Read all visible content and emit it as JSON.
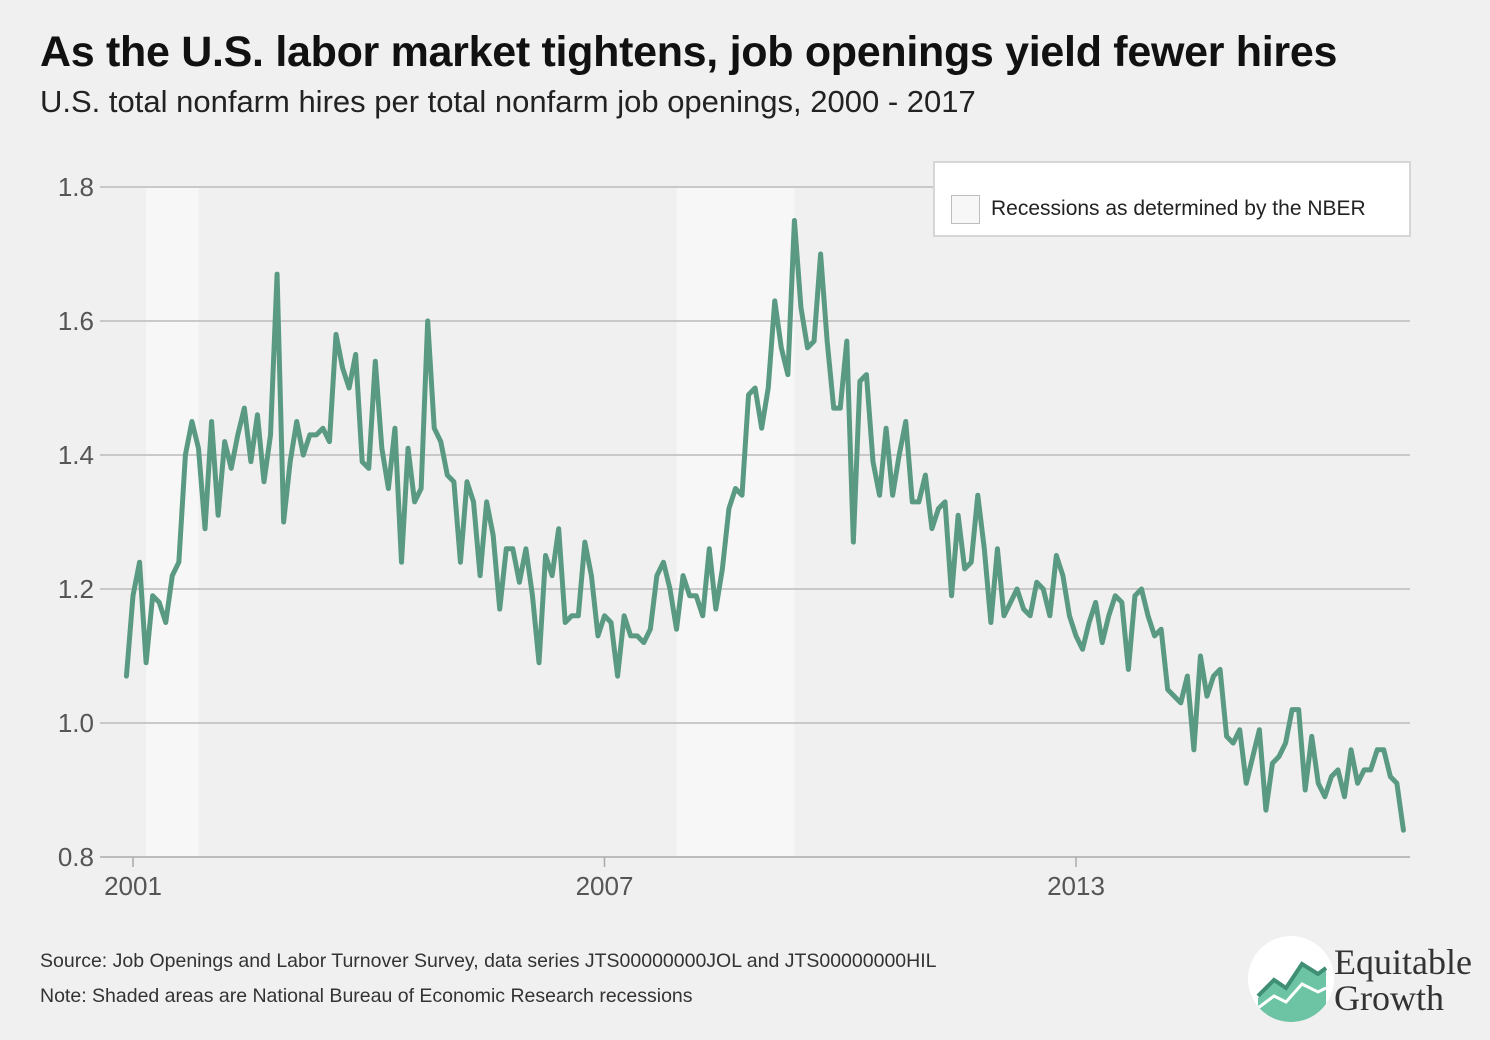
{
  "title": "As the U.S. labor market tightens, job openings yield fewer hires",
  "subtitle": "U.S. total nonfarm hires per total nonfarm job openings, 2000 - 2017",
  "legend": {
    "label": "Recessions as determined by the NBER"
  },
  "footer": {
    "source": "Source: Job Openings and Labor Turnover Survey, data series JTS00000000JOL and JTS00000000HIL",
    "note": "Note: Shaded areas are National Bureau of Economic Research recessions"
  },
  "logo": {
    "line1": "Equitable",
    "line2": "Growth"
  },
  "colors": {
    "line": "#5a9a82",
    "recession": "#f7f7f7",
    "grid": "#bbbbbb",
    "background": "#f0f0f0"
  },
  "chart_data": {
    "type": "line",
    "title": "As the U.S. labor market tightens, job openings yield fewer hires",
    "subtitle": "U.S. total nonfarm hires per total nonfarm job openings, 2000 - 2017",
    "xlabel": "",
    "ylabel": "",
    "x_start": "2000-12",
    "x_end": "2017-03",
    "xlim": [
      2000.917,
      2017.25
    ],
    "ylim": [
      0.8,
      1.8
    ],
    "yticks": [
      0.8,
      1.0,
      1.2,
      1.4,
      1.6,
      1.8
    ],
    "yticklabels": [
      "0.8",
      "1.0",
      "1.2",
      "1.4",
      "1.6",
      "1.8"
    ],
    "xticks": [
      2001,
      2007,
      2013
    ],
    "xticklabels": [
      "2001",
      "2007",
      "2013"
    ],
    "grid": true,
    "legend_position": "top-right",
    "recessions": [
      {
        "start": "2001-03",
        "end": "2001-11"
      },
      {
        "start": "2007-12",
        "end": "2009-06"
      }
    ],
    "series": [
      {
        "values": [
          1.07,
          1.19,
          1.24,
          1.09,
          1.19,
          1.18,
          1.15,
          1.22,
          1.24,
          1.4,
          1.45,
          1.41,
          1.29,
          1.45,
          1.31,
          1.42,
          1.38,
          1.43,
          1.47,
          1.39,
          1.46,
          1.36,
          1.43,
          1.67,
          1.3,
          1.39,
          1.45,
          1.4,
          1.43,
          1.43,
          1.44,
          1.42,
          1.58,
          1.53,
          1.5,
          1.55,
          1.39,
          1.38,
          1.54,
          1.41,
          1.35,
          1.44,
          1.24,
          1.41,
          1.33,
          1.35,
          1.6,
          1.44,
          1.42,
          1.37,
          1.36,
          1.24,
          1.36,
          1.33,
          1.22,
          1.33,
          1.28,
          1.17,
          1.26,
          1.26,
          1.21,
          1.26,
          1.19,
          1.09,
          1.25,
          1.22,
          1.29,
          1.15,
          1.16,
          1.16,
          1.27,
          1.22,
          1.13,
          1.16,
          1.15,
          1.07,
          1.16,
          1.13,
          1.13,
          1.12,
          1.14,
          1.22,
          1.24,
          1.2,
          1.14,
          1.22,
          1.19,
          1.19,
          1.16,
          1.26,
          1.17,
          1.23,
          1.32,
          1.35,
          1.34,
          1.49,
          1.5,
          1.44,
          1.5,
          1.63,
          1.56,
          1.52,
          1.75,
          1.62,
          1.56,
          1.57,
          1.7,
          1.57,
          1.47,
          1.47,
          1.57,
          1.27,
          1.51,
          1.52,
          1.39,
          1.34,
          1.44,
          1.34,
          1.4,
          1.45,
          1.33,
          1.33,
          1.37,
          1.29,
          1.32,
          1.33,
          1.19,
          1.31,
          1.23,
          1.24,
          1.34,
          1.26,
          1.15,
          1.26,
          1.16,
          1.18,
          1.2,
          1.17,
          1.16,
          1.21,
          1.2,
          1.16,
          1.25,
          1.22,
          1.16,
          1.13,
          1.11,
          1.15,
          1.18,
          1.12,
          1.16,
          1.19,
          1.18,
          1.08,
          1.19,
          1.2,
          1.16,
          1.13,
          1.14,
          1.05,
          1.04,
          1.03,
          1.07,
          0.96,
          1.1,
          1.04,
          1.07,
          1.08,
          0.98,
          0.97,
          0.99,
          0.91,
          0.95,
          0.99,
          0.87,
          0.94,
          0.95,
          0.97,
          1.02,
          1.02,
          0.9,
          0.98,
          0.91,
          0.89,
          0.92,
          0.93,
          0.89,
          0.96,
          0.91,
          0.93,
          0.93,
          0.96,
          0.96,
          0.92,
          0.91,
          0.84
        ]
      }
    ]
  }
}
